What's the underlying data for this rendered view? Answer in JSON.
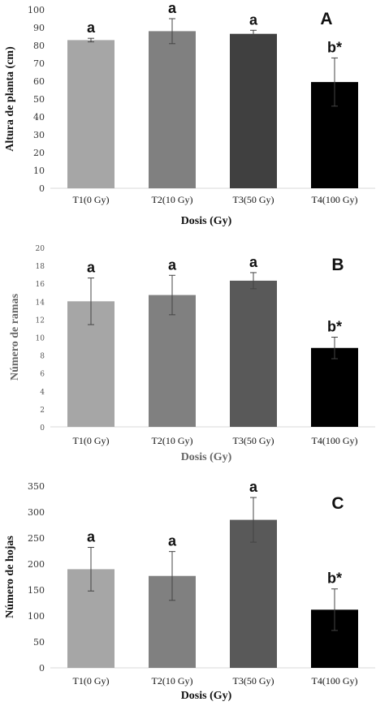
{
  "chart_data": [
    {
      "type": "bar",
      "panel_label": "A",
      "categories": [
        "T1(0 Gy)",
        "T2(10 Gy)",
        "T3(50 Gy)",
        "T4(100 Gy)"
      ],
      "values": [
        83,
        88,
        86.5,
        59.5
      ],
      "errors": [
        1,
        7,
        2,
        13.5
      ],
      "significance": [
        "a",
        "a",
        "a",
        "b*"
      ],
      "colors": [
        "#a6a6a6",
        "#808080",
        "#404040",
        "#000000"
      ],
      "title": "",
      "xlabel": "Dosis (Gy)",
      "ylabel": "Altura de planta (cm)",
      "ylim": [
        0,
        100
      ],
      "yticks": [
        0,
        10,
        20,
        30,
        40,
        50,
        60,
        70,
        80,
        90,
        100
      ],
      "grid": false
    },
    {
      "type": "bar",
      "panel_label": "B",
      "categories": [
        "T1(0 Gy)",
        "T2(10 Gy)",
        "T3(50 Gy)",
        "T4(100 Gy)"
      ],
      "values": [
        14,
        14.7,
        16.3,
        8.8
      ],
      "errors": [
        2.6,
        2.2,
        0.9,
        1.2
      ],
      "significance": [
        "a",
        "a",
        "a",
        "b*"
      ],
      "colors": [
        "#a6a6a6",
        "#808080",
        "#595959",
        "#000000"
      ],
      "title": "",
      "xlabel": "Dosis (Gy)",
      "ylabel": "Número de ramas",
      "ylim": [
        0,
        20
      ],
      "yticks": [
        0,
        2,
        4,
        6,
        8,
        10,
        12,
        14,
        16,
        18,
        20
      ],
      "grid": false
    },
    {
      "type": "bar",
      "panel_label": "C",
      "categories": [
        "T1(0 Gy)",
        "T2(10 Gy)",
        "T3(50 Gy)",
        "T4(100 Gy)"
      ],
      "values": [
        190,
        177,
        285,
        112
      ],
      "errors": [
        42,
        47,
        43,
        40
      ],
      "significance": [
        "a",
        "a",
        "a",
        "b*"
      ],
      "colors": [
        "#a6a6a6",
        "#808080",
        "#595959",
        "#000000"
      ],
      "title": "",
      "xlabel": "Dosis (Gy)",
      "ylabel": "Número de hojas",
      "ylim": [
        0,
        350
      ],
      "yticks": [
        0,
        50,
        100,
        150,
        200,
        250,
        300,
        350
      ],
      "grid": false
    }
  ]
}
